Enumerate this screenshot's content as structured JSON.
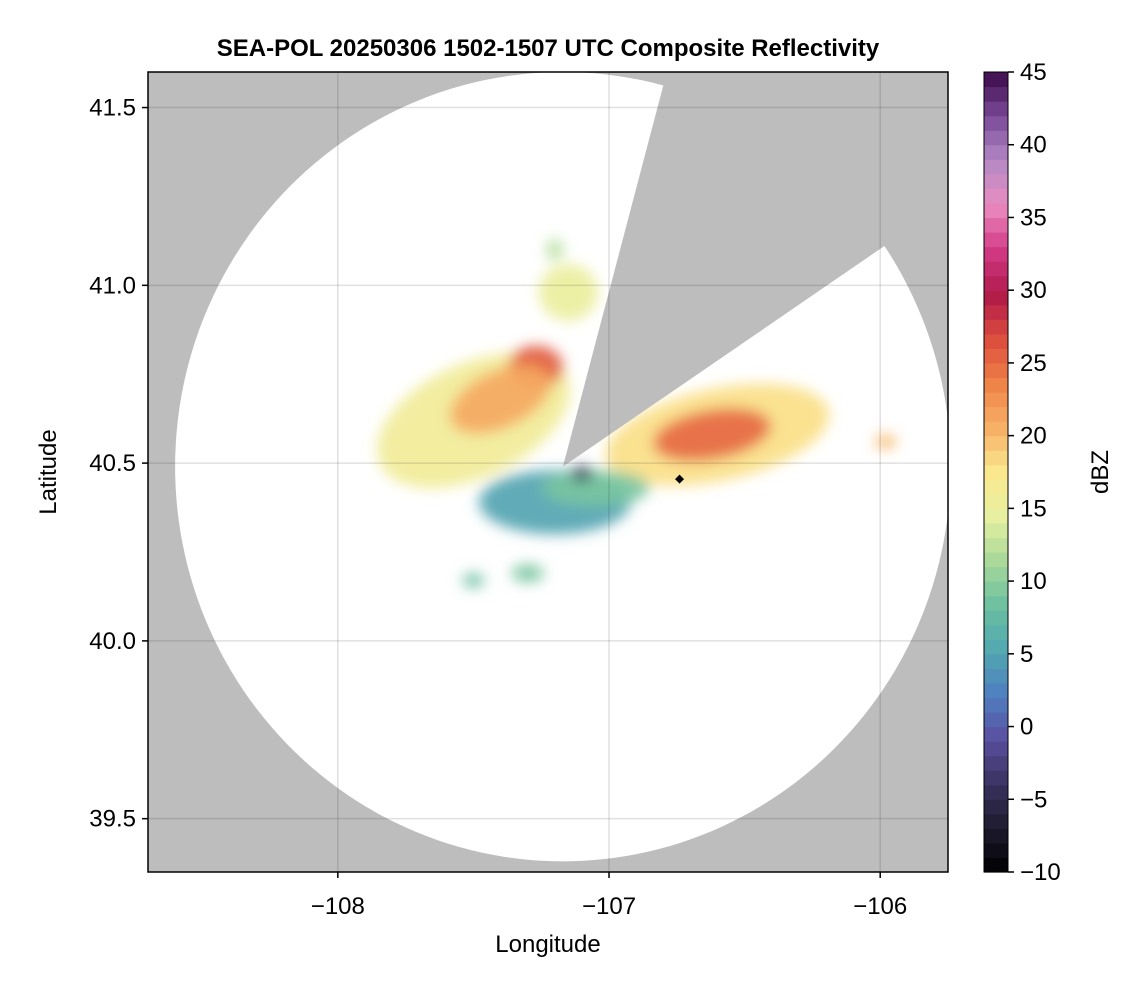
{
  "chart_data": {
    "type": "heatmap",
    "title": "SEA-POL 20250306 1502-1507 UTC Composite Reflectivity",
    "xlabel": "Longitude",
    "ylabel": "Latitude",
    "xlim": [
      -108.7,
      -105.75
    ],
    "ylim": [
      39.35,
      41.6
    ],
    "x_ticks": [
      -108,
      -107,
      -106
    ],
    "x_tick_labels": [
      "−108",
      "−107",
      "−106"
    ],
    "y_ticks": [
      39.5,
      40.0,
      40.5,
      41.0,
      41.5
    ],
    "y_tick_labels": [
      "39.5",
      "40.0",
      "40.5",
      "41.0",
      "41.5"
    ],
    "grid": true,
    "background_color": "#bdbdbd",
    "radar": {
      "site_lon": -107.17,
      "site_lat": 40.49,
      "coverage_radius_lon": 1.43,
      "coverage_radius_lat": 1.11,
      "blocked_sector_deg": [
        15,
        56
      ],
      "coverage_color": "#ffffff"
    },
    "marker": {
      "lon": -106.74,
      "lat": 40.455,
      "shape": "diamond",
      "color": "#000000"
    },
    "colorbar": {
      "label": "dBZ",
      "min": -10,
      "max": 45,
      "ticks": [
        -10,
        -5,
        0,
        5,
        10,
        15,
        20,
        25,
        30,
        35,
        40,
        45
      ],
      "tick_labels": [
        "−10",
        "−5",
        "0",
        "5",
        "10",
        "15",
        "20",
        "25",
        "30",
        "35",
        "40",
        "45"
      ],
      "colormap": [
        "#000000",
        "#1e1b2e",
        "#3a3260",
        "#5a4fa0",
        "#4f7fc0",
        "#52a8b0",
        "#6cc0a0",
        "#a8d89a",
        "#e6f0a0",
        "#fbe88e",
        "#f6b066",
        "#ef8248",
        "#dd4d3d",
        "#b01a4a",
        "#d23a86",
        "#ea8cc0",
        "#b48ac6",
        "#7b4a98",
        "#3c0a4a"
      ]
    },
    "echo_regions": [
      {
        "name": "northwest band",
        "lon": -107.5,
        "lat": 40.62,
        "rx_lon": 0.38,
        "ry_lat": 0.16,
        "rotation_deg": -25,
        "dbz": 16
      },
      {
        "name": "northwest core",
        "lon": -107.27,
        "lat": 40.77,
        "rx_lon": 0.1,
        "ry_lat": 0.06,
        "rotation_deg": 0,
        "dbz": 26
      },
      {
        "name": "northwest mid",
        "lon": -107.4,
        "lat": 40.68,
        "rx_lon": 0.2,
        "ry_lat": 0.08,
        "rotation_deg": -25,
        "dbz": 21
      },
      {
        "name": "north cell",
        "lon": -107.15,
        "lat": 40.98,
        "rx_lon": 0.11,
        "ry_lat": 0.08,
        "rotation_deg": 0,
        "dbz": 15
      },
      {
        "name": "small north echo",
        "lon": -107.2,
        "lat": 41.1,
        "rx_lon": 0.03,
        "ry_lat": 0.03,
        "rotation_deg": 0,
        "dbz": 12
      },
      {
        "name": "east region",
        "lon": -106.6,
        "lat": 40.58,
        "rx_lon": 0.42,
        "ry_lat": 0.13,
        "rotation_deg": -12,
        "dbz": 18
      },
      {
        "name": "east core",
        "lon": -106.62,
        "lat": 40.58,
        "rx_lon": 0.22,
        "ry_lat": 0.07,
        "rotation_deg": -10,
        "dbz": 25
      },
      {
        "name": "far east echo",
        "lon": -105.98,
        "lat": 40.56,
        "rx_lon": 0.04,
        "ry_lat": 0.02,
        "rotation_deg": 0,
        "dbz": 20
      },
      {
        "name": "south light echo",
        "lon": -107.2,
        "lat": 40.39,
        "rx_lon": 0.28,
        "ry_lat": 0.09,
        "rotation_deg": 0,
        "dbz": 5
      },
      {
        "name": "south inner echo",
        "lon": -107.05,
        "lat": 40.43,
        "rx_lon": 0.2,
        "ry_lat": 0.05,
        "rotation_deg": 0,
        "dbz": 9
      },
      {
        "name": "southern fragment",
        "lon": -107.3,
        "lat": 40.19,
        "rx_lon": 0.06,
        "ry_lat": 0.025,
        "rotation_deg": 0,
        "dbz": 9
      },
      {
        "name": "southwest fragment",
        "lon": -107.5,
        "lat": 40.17,
        "rx_lon": 0.04,
        "ry_lat": 0.02,
        "rotation_deg": 0,
        "dbz": 8
      },
      {
        "name": "near-site clutter",
        "lon": -107.1,
        "lat": 40.47,
        "rx_lon": 0.04,
        "ry_lat": 0.02,
        "rotation_deg": 0,
        "dbz": -5
      }
    ]
  }
}
